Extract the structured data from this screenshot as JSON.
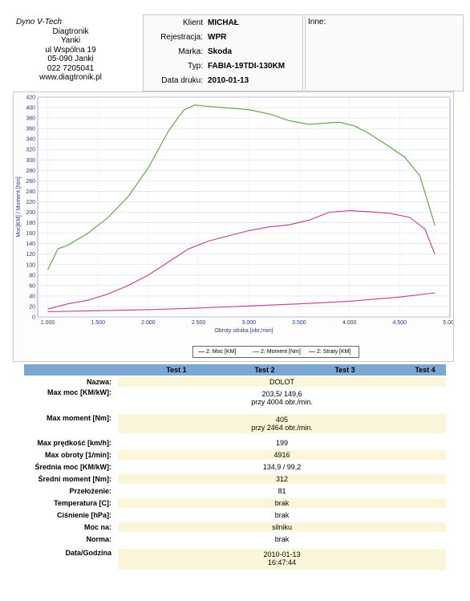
{
  "company": {
    "name": "Dyno V-Tech",
    "lines": [
      "Diagtronik",
      "Yanki",
      "ul Wspólna 19",
      "05-090 Janki",
      "022 7205041",
      "www.diagtronik.pl"
    ]
  },
  "client": {
    "rows": [
      {
        "key": "Klient",
        "value": "MICHAŁ"
      },
      {
        "key": "Rejestracja:",
        "value": "WPR"
      },
      {
        "key": "Marka:",
        "value": "Skoda"
      },
      {
        "key": "Typ:",
        "value": "FABIA-19TDI-130KM"
      },
      {
        "key": "Data druku:",
        "value": "2010-01-13"
      }
    ]
  },
  "notes": {
    "label": "Inne:"
  },
  "legend": [
    "2: Moc [KM]",
    "2: Moment [Nm]",
    "2: Straty [KM]"
  ],
  "colors": {
    "moc": "#c23a8e",
    "moment": "#5aa23e",
    "straty": "#c23a8e",
    "header": "#7da7d3"
  },
  "chart_data": {
    "type": "line",
    "xlabel": "Obroty silnika [obr./min]",
    "ylabel": "Moc[KM] / Moment [Nm]",
    "xlim": [
      900,
      5000
    ],
    "ylim": [
      0,
      420
    ],
    "x_ticks": [
      "1.000",
      "1.500",
      "2.000",
      "2.500",
      "3.000",
      "3.500",
      "4.000",
      "4.500",
      "5.000"
    ],
    "x_tick_values": [
      1000,
      1500,
      2000,
      2500,
      3000,
      3500,
      4000,
      4500,
      5000
    ],
    "y_ticks": [
      "0",
      "20",
      "40",
      "60",
      "80",
      "100",
      "120",
      "140",
      "160",
      "180",
      "200",
      "220",
      "240",
      "260",
      "280",
      "300",
      "320",
      "340",
      "360",
      "380",
      "400",
      "420"
    ],
    "grid": true,
    "series": [
      {
        "name": "2: Moment [Nm]",
        "x": [
          1000,
          1100,
          1200,
          1400,
          1600,
          1800,
          2000,
          2200,
          2350,
          2464,
          2600,
          2800,
          3000,
          3200,
          3400,
          3600,
          3750,
          3900,
          4050,
          4200,
          4400,
          4550,
          4700,
          4850
        ],
        "y": [
          90,
          130,
          137,
          160,
          190,
          230,
          285,
          355,
          395,
          405,
          402,
          399,
          396,
          388,
          375,
          368,
          370,
          372,
          365,
          350,
          325,
          305,
          270,
          175
        ]
      },
      {
        "name": "2: Moc [KM]",
        "x": [
          1000,
          1200,
          1400,
          1600,
          1800,
          2000,
          2200,
          2400,
          2600,
          2800,
          3000,
          3200,
          3400,
          3600,
          3800,
          4004,
          4200,
          4400,
          4600,
          4750,
          4850
        ],
        "y": [
          15,
          25,
          32,
          44,
          60,
          80,
          105,
          130,
          145,
          155,
          165,
          172,
          176,
          185,
          200,
          203,
          201,
          198,
          190,
          168,
          120
        ]
      },
      {
        "name": "2: Straty [KM]",
        "x": [
          1000,
          1500,
          2000,
          2500,
          3000,
          3500,
          4000,
          4500,
          4850
        ],
        "y": [
          10,
          12,
          14,
          17,
          21,
          25,
          30,
          38,
          46
        ]
      }
    ]
  },
  "results": {
    "headers": [
      "Test 1",
      "Test 2",
      "Test 3",
      "Test 4"
    ],
    "rows": [
      {
        "label": "Nazwa:",
        "value": [
          "DOLOT"
        ]
      },
      {
        "label": "Max moc [KM/kW]:",
        "value": [
          "203,5/ 149,6",
          "przy 4004 obr./min."
        ]
      },
      {
        "label": "Max moment [Nm]:",
        "value": [
          "405",
          "przy 2464 obr./min."
        ]
      },
      {
        "label": "Max prędkość [km/h]:",
        "value": [
          "199"
        ]
      },
      {
        "label": "Max obroty [1/min]:",
        "value": [
          "4916"
        ]
      },
      {
        "label": "Średnia moc [KM/kW]:",
        "value": [
          "134,9 / 99,2"
        ]
      },
      {
        "label": "Średni moment [Nm]:",
        "value": [
          "312"
        ]
      },
      {
        "label": "Przełożenie:",
        "value": [
          "81"
        ]
      },
      {
        "label": "Temperatura [C]:",
        "value": [
          "brak"
        ]
      },
      {
        "label": "Ciśnienie [hPa]:",
        "value": [
          "brak"
        ]
      },
      {
        "label": "Moc na:",
        "value": [
          "silniku"
        ]
      },
      {
        "label": "Norma:",
        "value": [
          "brak"
        ]
      },
      {
        "label": "Data/Godzina",
        "value": [
          "2010-01-13",
          "16:47:44"
        ]
      }
    ]
  }
}
